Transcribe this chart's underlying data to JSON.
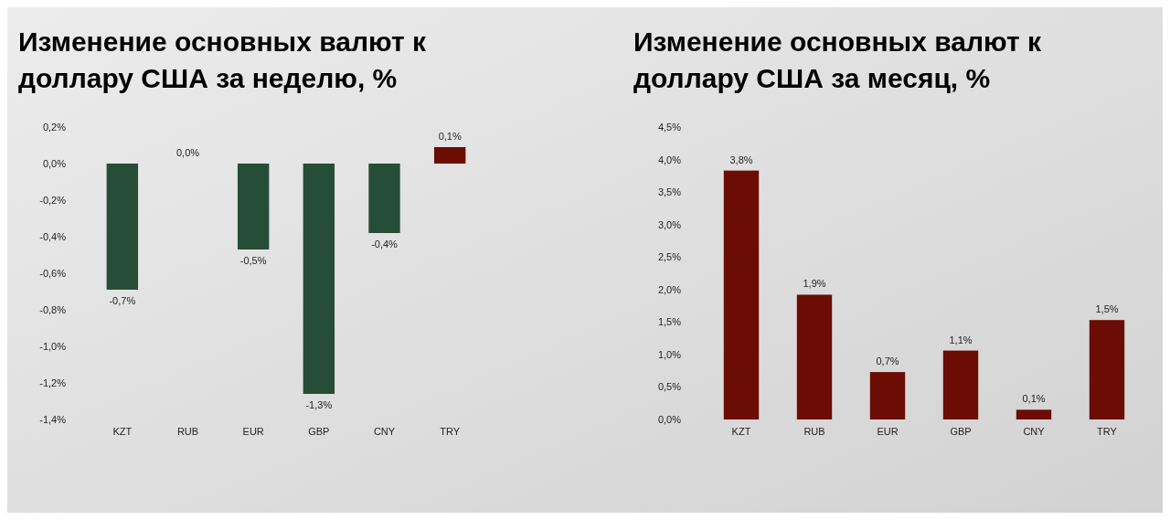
{
  "chart_data": [
    {
      "type": "bar",
      "title": "Изменение основных валют к доллару США за неделю, %",
      "categories": [
        "KZT",
        "RUB",
        "EUR",
        "GBP",
        "CNY",
        "TRY"
      ],
      "values": [
        -0.69,
        0.0,
        -0.47,
        -1.26,
        -0.38,
        0.09
      ],
      "colors": [
        "#264d38",
        "#264d38",
        "#264d38",
        "#264d38",
        "#264d38",
        "#6b0d05"
      ],
      "value_labels": [
        "-0,7%",
        "0,0%",
        "-0,5%",
        "-1,3%",
        "-0,4%",
        "0,1%"
      ],
      "ylim": [
        -1.4,
        0.2
      ],
      "yticks": [
        {
          "value": 0.2,
          "label": "0,2%"
        },
        {
          "value": 0,
          "label": "0,0%"
        },
        {
          "value": -0.2,
          "label": "-0,2%"
        },
        {
          "value": -0.4,
          "label": "-0,4%"
        },
        {
          "value": -0.6,
          "label": "-0,6%"
        },
        {
          "value": -0.8,
          "label": "-0,8%"
        },
        {
          "value": -1.0,
          "label": "-1,0%"
        },
        {
          "value": -1.2,
          "label": "-1,2%"
        },
        {
          "value": -1.4,
          "label": "-1,4%"
        }
      ]
    },
    {
      "type": "bar",
      "title": "Изменение основных валют к доллару США за месяц, %",
      "categories": [
        "KZT",
        "RUB",
        "EUR",
        "GBP",
        "CNY",
        "TRY"
      ],
      "values": [
        3.83,
        1.92,
        0.73,
        1.06,
        0.15,
        1.53
      ],
      "colors": [
        "#6b0d05",
        "#6b0d05",
        "#6b0d05",
        "#6b0d05",
        "#6b0d05",
        "#6b0d05"
      ],
      "value_labels": [
        "3,8%",
        "1,9%",
        "0,7%",
        "1,1%",
        "0,1%",
        "1,5%"
      ],
      "ylim": [
        0,
        4.5
      ],
      "yticks": [
        {
          "value": 0,
          "label": "0,0%"
        },
        {
          "value": 0.5,
          "label": "0,5%"
        },
        {
          "value": 1.0,
          "label": "1,0%"
        },
        {
          "value": 1.5,
          "label": "1,5%"
        },
        {
          "value": 2.0,
          "label": "2,0%"
        },
        {
          "value": 2.5,
          "label": "2,5%"
        },
        {
          "value": 3.0,
          "label": "3,0%"
        },
        {
          "value": 3.5,
          "label": "3,5%"
        },
        {
          "value": 4.0,
          "label": "4,0%"
        },
        {
          "value": 4.5,
          "label": "4,5%"
        }
      ]
    }
  ]
}
